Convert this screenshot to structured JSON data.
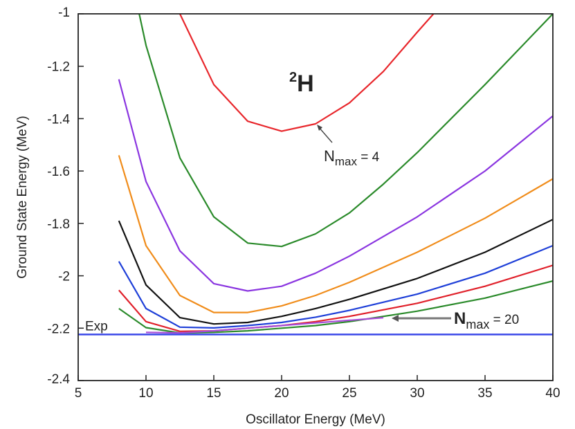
{
  "chart_data": {
    "type": "line",
    "title": "",
    "nucleus_label": {
      "main": "H",
      "superscript": "2"
    },
    "xlabel": "Oscillator Energy (MeV)",
    "ylabel": "Ground State Energy (MeV)",
    "xlim": [
      5,
      40
    ],
    "ylim": [
      -2.4,
      -1.0
    ],
    "xticks": [
      5,
      10,
      15,
      20,
      25,
      30,
      35,
      40
    ],
    "yticks": [
      -2.4,
      -2.2,
      -2.0,
      -1.8,
      -1.6,
      -1.4,
      -1.2,
      -1.0
    ],
    "grid": false,
    "legend": "none",
    "exp_line": {
      "label": "Exp",
      "y": -2.224,
      "color": "#3a47e8"
    },
    "annotations": [
      {
        "base": "N",
        "subscript": "max",
        "suffix": " = 4",
        "points_to": [
          22.5,
          -1.42
        ]
      },
      {
        "base": "N",
        "subscript": "max",
        "suffix": " = 20",
        "points_to": [
          27.5,
          -2.165
        ]
      }
    ],
    "series": [
      {
        "color": "#e8262b",
        "points": [
          [
            12.5,
            -1.0
          ],
          [
            15,
            -1.27
          ],
          [
            17.5,
            -1.41
          ],
          [
            20,
            -1.448
          ],
          [
            22.5,
            -1.42
          ],
          [
            25,
            -1.34
          ],
          [
            27.5,
            -1.22
          ],
          [
            30,
            -1.07
          ],
          [
            31.2,
            -1.0
          ]
        ]
      },
      {
        "color": "#2a8a2a",
        "points": [
          [
            9.5,
            -1.0
          ],
          [
            10,
            -1.12
          ],
          [
            12.5,
            -1.55
          ],
          [
            15,
            -1.775
          ],
          [
            17.5,
            -1.875
          ],
          [
            20,
            -1.888
          ],
          [
            22.5,
            -1.84
          ],
          [
            25,
            -1.76
          ],
          [
            27.5,
            -1.65
          ],
          [
            30,
            -1.53
          ],
          [
            35,
            -1.27
          ],
          [
            40,
            -1.0
          ]
        ]
      },
      {
        "color": "#8a35e0",
        "points": [
          [
            8,
            -1.25
          ],
          [
            10,
            -1.64
          ],
          [
            12.5,
            -1.905
          ],
          [
            15,
            -2.03
          ],
          [
            17.5,
            -2.058
          ],
          [
            20,
            -2.04
          ],
          [
            22.5,
            -1.99
          ],
          [
            25,
            -1.925
          ],
          [
            30,
            -1.775
          ],
          [
            35,
            -1.6
          ],
          [
            40,
            -1.39
          ]
        ]
      },
      {
        "color": "#f08c1a",
        "points": [
          [
            8,
            -1.54
          ],
          [
            10,
            -1.885
          ],
          [
            12.5,
            -2.075
          ],
          [
            15,
            -2.14
          ],
          [
            17.5,
            -2.14
          ],
          [
            20,
            -2.115
          ],
          [
            22.5,
            -2.075
          ],
          [
            25,
            -2.025
          ],
          [
            30,
            -1.91
          ],
          [
            35,
            -1.78
          ],
          [
            40,
            -1.63
          ]
        ]
      },
      {
        "color": "#111111",
        "points": [
          [
            8,
            -1.79
          ],
          [
            10,
            -2.035
          ],
          [
            12.5,
            -2.16
          ],
          [
            15,
            -2.184
          ],
          [
            17.5,
            -2.178
          ],
          [
            20,
            -2.155
          ],
          [
            22.5,
            -2.125
          ],
          [
            25,
            -2.09
          ],
          [
            30,
            -2.01
          ],
          [
            35,
            -1.91
          ],
          [
            40,
            -1.785
          ]
        ]
      },
      {
        "color": "#1e3fd8",
        "points": [
          [
            8,
            -1.945
          ],
          [
            10,
            -2.125
          ],
          [
            12.5,
            -2.196
          ],
          [
            15,
            -2.199
          ],
          [
            17.5,
            -2.19
          ],
          [
            20,
            -2.178
          ],
          [
            22.5,
            -2.158
          ],
          [
            25,
            -2.132
          ],
          [
            30,
            -2.07
          ],
          [
            35,
            -1.99
          ],
          [
            40,
            -1.885
          ]
        ]
      },
      {
        "color": "#e0202a",
        "points": [
          [
            8,
            -2.055
          ],
          [
            10,
            -2.175
          ],
          [
            12.5,
            -2.212
          ],
          [
            15,
            -2.21
          ],
          [
            17.5,
            -2.2
          ],
          [
            20,
            -2.19
          ],
          [
            22.5,
            -2.175
          ],
          [
            25,
            -2.155
          ],
          [
            30,
            -2.105
          ],
          [
            35,
            -2.04
          ],
          [
            40,
            -1.96
          ]
        ]
      },
      {
        "color": "#2a8a2a",
        "points": [
          [
            8,
            -2.125
          ],
          [
            10,
            -2.198
          ],
          [
            12.5,
            -2.218
          ],
          [
            15,
            -2.216
          ],
          [
            17.5,
            -2.21
          ],
          [
            20,
            -2.2
          ],
          [
            22.5,
            -2.19
          ],
          [
            25,
            -2.175
          ],
          [
            30,
            -2.135
          ],
          [
            35,
            -2.085
          ],
          [
            40,
            -2.02
          ]
        ]
      },
      {
        "color": "#a64bd8",
        "points": [
          [
            10,
            -2.216
          ],
          [
            12.5,
            -2.218
          ],
          [
            15,
            -2.21
          ],
          [
            17.5,
            -2.2
          ],
          [
            20,
            -2.19
          ],
          [
            22.5,
            -2.18
          ],
          [
            25,
            -2.17
          ],
          [
            27.5,
            -2.16
          ]
        ]
      }
    ]
  }
}
